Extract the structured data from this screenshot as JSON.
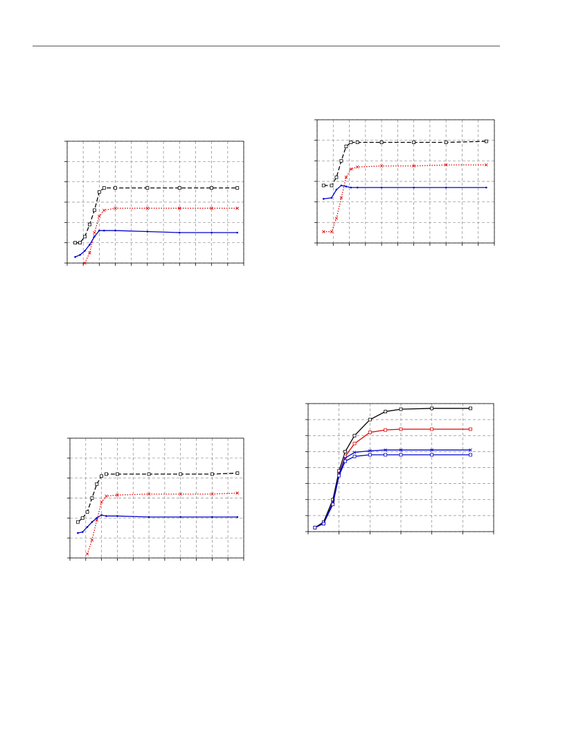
{
  "chart_data": [
    {
      "type": "line",
      "xlim": [
        0,
        11
      ],
      "ylim": [
        0,
        6
      ],
      "xticks": [
        0,
        1,
        2,
        3,
        4,
        5,
        6,
        7,
        8,
        9,
        10,
        11
      ],
      "yticks": [
        0,
        1,
        2,
        3,
        4,
        5,
        6
      ],
      "grid": true,
      "x": [
        0.5,
        0.8,
        1.1,
        1.4,
        1.7,
        2.0,
        2.3,
        3,
        5,
        7,
        9,
        10.6
      ],
      "series": [
        {
          "color": "#000000",
          "dash": "dashed",
          "marker": "square",
          "values": [
            1.0,
            1.0,
            1.3,
            1.9,
            2.6,
            3.5,
            3.7,
            3.7,
            3.7,
            3.7,
            3.7,
            3.7
          ]
        },
        {
          "color": "#e00000",
          "dash": "dotted",
          "marker": "cross",
          "values": [
            null,
            null,
            0.0,
            0.5,
            1.5,
            2.3,
            2.6,
            2.7,
            2.7,
            2.7,
            2.7,
            2.7
          ]
        },
        {
          "color": "#0000cc",
          "dash": "solid",
          "marker": "dot",
          "values": [
            0.3,
            0.4,
            0.6,
            0.9,
            1.3,
            1.6,
            1.6,
            1.6,
            1.55,
            1.5,
            1.5,
            1.5
          ]
        }
      ]
    },
    {
      "type": "line",
      "xlim": [
        0,
        11
      ],
      "ylim": [
        0,
        6
      ],
      "xticks": [
        0,
        1,
        2,
        3,
        4,
        5,
        6,
        7,
        8,
        9,
        10,
        11
      ],
      "yticks": [
        0,
        1,
        2,
        3,
        4,
        5,
        6
      ],
      "grid": true,
      "x": [
        0.4,
        0.9,
        1.2,
        1.5,
        1.8,
        2.1,
        2.5,
        4,
        6,
        8,
        10.5
      ],
      "series": [
        {
          "color": "#000000",
          "dash": "dashed",
          "marker": "square",
          "values": [
            2.8,
            2.8,
            3.2,
            4.0,
            4.7,
            4.9,
            4.9,
            4.9,
            4.9,
            4.9,
            4.95
          ]
        },
        {
          "color": "#e00000",
          "dash": "dotted",
          "marker": "cross",
          "values": [
            0.55,
            0.55,
            1.2,
            2.2,
            3.2,
            3.6,
            3.7,
            3.75,
            3.75,
            3.8,
            3.8
          ]
        },
        {
          "color": "#0000cc",
          "dash": "solid",
          "marker": "dot",
          "values": [
            2.15,
            2.2,
            2.6,
            2.8,
            2.75,
            2.7,
            2.7,
            2.7,
            2.7,
            2.7,
            2.7
          ]
        }
      ]
    },
    {
      "type": "line",
      "xlim": [
        0,
        11
      ],
      "ylim": [
        0,
        6
      ],
      "xticks": [
        0,
        1,
        2,
        3,
        4,
        5,
        6,
        7,
        8,
        9,
        10,
        11
      ],
      "yticks": [
        0,
        1,
        2,
        3,
        4,
        5,
        6
      ],
      "grid": true,
      "x": [
        0.5,
        0.8,
        1.1,
        1.4,
        1.7,
        2.0,
        2.3,
        3,
        5,
        7,
        9,
        10.6
      ],
      "series": [
        {
          "color": "#000000",
          "dash": "dashed",
          "marker": "square",
          "values": [
            1.8,
            2.0,
            2.3,
            3.0,
            3.7,
            4.1,
            4.2,
            4.2,
            4.2,
            4.2,
            4.2,
            4.25
          ]
        },
        {
          "color": "#e00000",
          "dash": "dotted",
          "marker": "cross",
          "values": [
            null,
            null,
            0.2,
            0.9,
            1.9,
            2.8,
            3.1,
            3.15,
            3.2,
            3.2,
            3.2,
            3.25
          ]
        },
        {
          "color": "#0000cc",
          "dash": "solid",
          "marker": "dot",
          "values": [
            1.25,
            1.3,
            1.55,
            1.8,
            2.0,
            2.15,
            2.1,
            2.1,
            2.05,
            2.05,
            2.05,
            2.05
          ]
        }
      ]
    },
    {
      "type": "line",
      "xlim": [
        0,
        6
      ],
      "ylim": [
        0,
        8
      ],
      "xticks": [
        0,
        1,
        2,
        3,
        4,
        5,
        6
      ],
      "yticks": [
        0,
        1,
        2,
        3,
        4,
        5,
        6,
        7,
        8
      ],
      "grid": true,
      "x": [
        0.22,
        0.5,
        0.8,
        1.0,
        1.2,
        1.5,
        2.0,
        2.5,
        3,
        4,
        5.25
      ],
      "series": [
        {
          "color": "#000000",
          "dash": "solid",
          "marker": "square",
          "values": [
            0.25,
            0.6,
            2.0,
            3.8,
            5.0,
            6.0,
            7.0,
            7.5,
            7.65,
            7.7,
            7.7
          ]
        },
        {
          "color": "#e00000",
          "dash": "solid",
          "marker": "square",
          "values": [
            0.25,
            0.5,
            1.8,
            3.6,
            4.7,
            5.5,
            6.2,
            6.35,
            6.4,
            6.4,
            6.4
          ]
        },
        {
          "color": "#0000cc",
          "dash": "solid",
          "marker": "cross",
          "values": [
            0.25,
            0.5,
            1.8,
            3.6,
            4.6,
            4.95,
            5.05,
            5.1,
            5.1,
            5.1,
            5.1
          ]
        },
        {
          "color": "#0000cc",
          "dash": "solid",
          "marker": "square",
          "values": [
            0.25,
            0.5,
            1.7,
            3.5,
            4.4,
            4.7,
            4.8,
            4.8,
            4.8,
            4.8,
            4.8
          ]
        }
      ]
    }
  ]
}
